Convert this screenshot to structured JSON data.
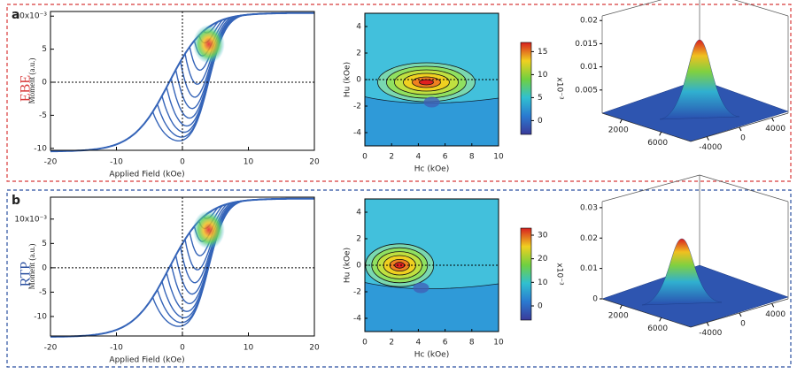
{
  "rows": [
    {
      "label": "a",
      "sample": "EBE",
      "color": "#d83a3a",
      "loops": {
        "xlabel": "Applied Field (kOe)",
        "ylabel": "Moment (a.u.)",
        "xlim": [
          -20,
          20
        ],
        "ylim": [
          -10.3,
          10.7
        ],
        "xticks": [
          -20,
          -10,
          0,
          10,
          20
        ],
        "yticks": [
          {
            "value": 10,
            "label": "10x10⁻³"
          },
          5,
          0,
          -5,
          -10
        ]
      },
      "forc": {
        "xlabel": "Hc (kOe)",
        "ylabel": "Hu (kOe)",
        "xlim": [
          0,
          10
        ],
        "ylim": [
          -5,
          5
        ],
        "xticks": [
          0,
          2,
          4,
          6,
          8,
          10
        ],
        "yticks": [
          4,
          2,
          0,
          -2,
          -4
        ]
      },
      "colorbar": {
        "label": "x10⁻³",
        "lim": [
          -3,
          17
        ],
        "ticks": [
          15,
          10,
          5,
          0
        ]
      },
      "surface": {
        "zlim": [
          0,
          0.021
        ],
        "zticks": [
          0.02,
          0.015,
          0.01,
          0.005
        ],
        "xlim": [
          0,
          9000
        ],
        "xticks": [
          2000,
          6000
        ],
        "ylim": [
          -6000,
          6000
        ],
        "yticks": [
          -4000,
          0,
          4000
        ]
      }
    },
    {
      "label": "b",
      "sample": "RTP",
      "color": "#2a4fa0",
      "loops": {
        "xlabel": "Applied Field (kOe)",
        "ylabel": "Moment (a.u.)",
        "xlim": [
          -20,
          20
        ],
        "ylim": [
          -14,
          14.5
        ],
        "xticks": [
          -20,
          -10,
          0,
          10,
          20
        ],
        "yticks": [
          {
            "value": 10,
            "label": "10x10⁻³"
          },
          5,
          0,
          -5,
          -10
        ]
      },
      "forc": {
        "xlabel": "Hc (kOe)",
        "ylabel": "Hu (kOe)",
        "xlim": [
          0,
          10
        ],
        "ylim": [
          -5,
          5
        ],
        "xticks": [
          0,
          2,
          4,
          6,
          8,
          10
        ],
        "yticks": [
          4,
          2,
          0,
          -2,
          -4
        ]
      },
      "colorbar": {
        "label": "x10⁻³",
        "lim": [
          -6,
          33
        ],
        "ticks": [
          30,
          20,
          10,
          0
        ]
      },
      "surface": {
        "zlim": [
          0,
          0.032
        ],
        "zticks": [
          0.03,
          0.02,
          0.01,
          0
        ],
        "xlim": [
          0,
          9000
        ],
        "xticks": [
          2000,
          6000
        ],
        "ylim": [
          -6000,
          6000
        ],
        "yticks": [
          -4000,
          0,
          4000
        ]
      }
    }
  ]
}
